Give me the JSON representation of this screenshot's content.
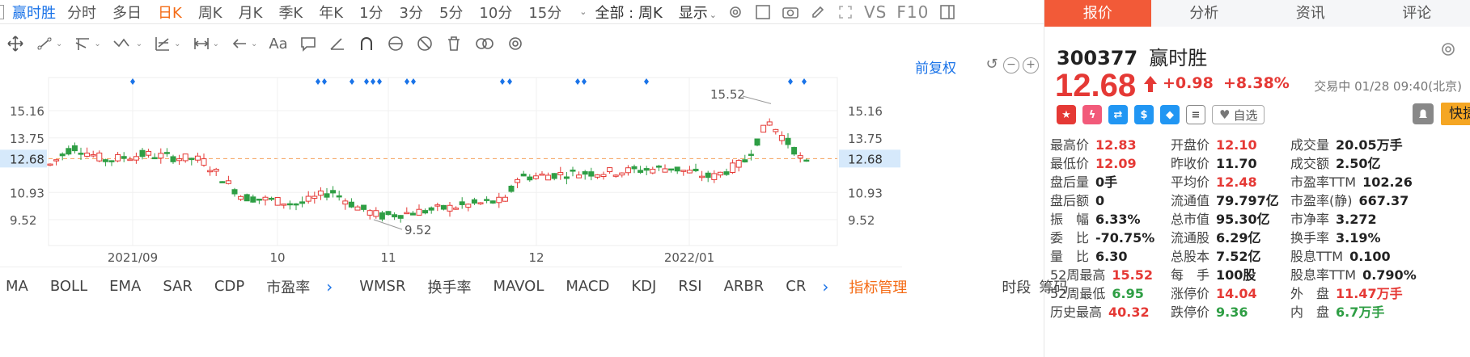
{
  "toolbar": {
    "stock_name": "赢时胜",
    "periods": [
      "分时",
      "多日",
      "日K",
      "周K",
      "月K",
      "季K",
      "年K",
      "1分",
      "3分",
      "5分",
      "10分",
      "15分"
    ],
    "active_period": "日K",
    "fuquan_select": "全部 : 周K",
    "display_label": "显示",
    "vs_label": "VS",
    "f10_label": "F10"
  },
  "drawing_tools": [
    "crosshair",
    "line",
    "ray",
    "wave",
    "fib",
    "range",
    "arrow",
    "text",
    "comment",
    "ruler",
    "magnet",
    "lock",
    "eye",
    "trash",
    "compare",
    "settings"
  ],
  "chart": {
    "adjust_label": "前复权",
    "price_levels": [
      "15.16",
      "13.75",
      "12.68",
      "10.93",
      "9.52"
    ],
    "current_price_label": "12.68",
    "x_labels": [
      "2021/09",
      "10",
      "11",
      "12",
      "2022/01"
    ],
    "max_label": "15.52",
    "min_label": "9.52"
  },
  "chart_data": {
    "type": "candlestick",
    "x_tick_labels": [
      "2021/09",
      "10",
      "11",
      "12",
      "2022/01"
    ],
    "y_tick_labels": [
      "15.16",
      "13.75",
      "12.68",
      "10.93",
      "9.52"
    ],
    "last_close": 12.68,
    "period_high": 15.52,
    "period_low": 9.52,
    "up_color": "#e53935",
    "down_color": "#2e9e44"
  },
  "indicators": {
    "left": [
      "MA",
      "BOLL",
      "EMA",
      "SAR",
      "CDP",
      "市盈率"
    ],
    "right": [
      "WMSR",
      "换手率",
      "MAVOL",
      "MACD",
      "KDJ",
      "RSI",
      "ARBR",
      "CR"
    ],
    "manage": "指标管理",
    "extra": [
      "时段",
      "筹码"
    ]
  },
  "panel": {
    "tabs": [
      "报价",
      "分析",
      "资讯",
      "评论"
    ],
    "active_tab": "报价",
    "code": "300377",
    "name": "赢时胜",
    "price": "12.68",
    "change": "+0.98",
    "change_pct": "+8.38%",
    "status": "交易中 01/28 09:40(北京)",
    "watch_label": "自选",
    "fast_trade": "快捷交易",
    "colors": {
      "up": "#e53935",
      "down": "#2e9e44",
      "accent": "#f25a38"
    },
    "rows": [
      [
        {
          "l": "最高价",
          "v": "12.83",
          "c": "red"
        },
        {
          "l": "开盘价",
          "v": "12.10",
          "c": "red"
        },
        {
          "l": "成交量",
          "v": "20.05",
          "u": "万手",
          "c": "dark"
        }
      ],
      [
        {
          "l": "最低价",
          "v": "12.09",
          "c": "red"
        },
        {
          "l": "昨收价",
          "v": "11.70",
          "c": "dark"
        },
        {
          "l": "成交额",
          "v": "2.50亿",
          "c": "dark"
        }
      ],
      [
        {
          "l": "盘后量",
          "v": "0手",
          "c": "dark"
        },
        {
          "l": "平均价",
          "v": "12.48",
          "c": "red"
        },
        {
          "l": "市盈率TTM",
          "v": "102.26",
          "c": "dark"
        }
      ],
      [
        {
          "l": "盘后额",
          "v": "0",
          "c": "dark"
        },
        {
          "l": "流通值",
          "v": "79.797亿",
          "c": "dark"
        },
        {
          "l": "市盈率(静)",
          "v": "667.37",
          "c": "dark"
        }
      ],
      [
        {
          "l": "振　幅",
          "v": "6.33%",
          "c": "dark"
        },
        {
          "l": "总市值",
          "v": "95.30亿",
          "c": "dark"
        },
        {
          "l": "市净率",
          "v": "3.272",
          "c": "dark"
        }
      ],
      [
        {
          "l": "委　比",
          "v": "-70.75%",
          "c": "dark"
        },
        {
          "l": "流通股",
          "v": "6.29亿",
          "c": "dark"
        },
        {
          "l": "换手率",
          "v": "3.19%",
          "c": "dark"
        }
      ],
      [
        {
          "l": "量　比",
          "v": "6.30",
          "c": "dark"
        },
        {
          "l": "总股本",
          "v": "7.52亿",
          "c": "dark"
        },
        {
          "l": "股息TTM",
          "v": "0.100",
          "c": "dark"
        }
      ],
      [
        {
          "l": "52周最高",
          "v": "15.52",
          "c": "red"
        },
        {
          "l": "每　手",
          "v": "100股",
          "c": "dark"
        },
        {
          "l": "股息率TTM",
          "v": "0.790%",
          "c": "dark"
        }
      ],
      [
        {
          "l": "52周最低",
          "v": "6.95",
          "c": "green"
        },
        {
          "l": "涨停价",
          "v": "14.04",
          "c": "red"
        },
        {
          "l": "外　盘",
          "v": "11.47",
          "u": "万手",
          "c": "red"
        }
      ],
      [
        {
          "l": "历史最高",
          "v": "40.32",
          "c": "red"
        },
        {
          "l": "跌停价",
          "v": "9.36",
          "c": "green"
        },
        {
          "l": "内　盘",
          "v": "6.7",
          "u": "万手",
          "c": "green"
        }
      ]
    ]
  }
}
